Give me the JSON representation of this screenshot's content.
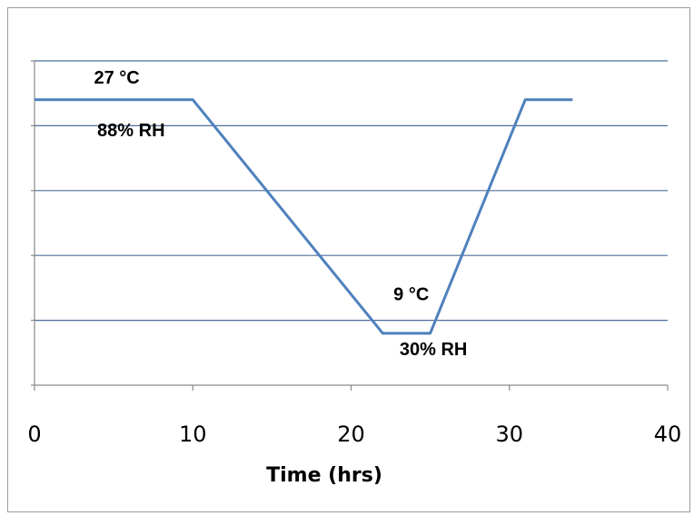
{
  "chart_data": {
    "type": "line",
    "title": "",
    "xlabel": "Time (hrs)",
    "ylabel": "",
    "xlim": [
      0,
      40
    ],
    "ylim": [
      0,
      5
    ],
    "x_ticks": [
      0,
      10,
      20,
      30,
      40
    ],
    "x_tick_labels": [
      "0",
      "10",
      "20",
      "30",
      "40"
    ],
    "y_gridlines": [
      1,
      2,
      3,
      4,
      5
    ],
    "grid": true,
    "legend": "none",
    "series_color": "#4f81bd",
    "series": [
      {
        "x": [
          0,
          10,
          22,
          25,
          31,
          34
        ],
        "y": [
          4.4,
          4.4,
          0.8,
          0.8,
          4.4,
          4.4
        ]
      }
    ],
    "annotations": [
      {
        "text": "27 °C",
        "x": 5.2,
        "y": 4.65
      },
      {
        "text": "88% RH",
        "x": 6.1,
        "y": 3.84
      },
      {
        "text": "9 °C",
        "x": 23.8,
        "y": 1.31
      },
      {
        "text": "30% RH",
        "x": 25.2,
        "y": 0.46
      }
    ]
  }
}
